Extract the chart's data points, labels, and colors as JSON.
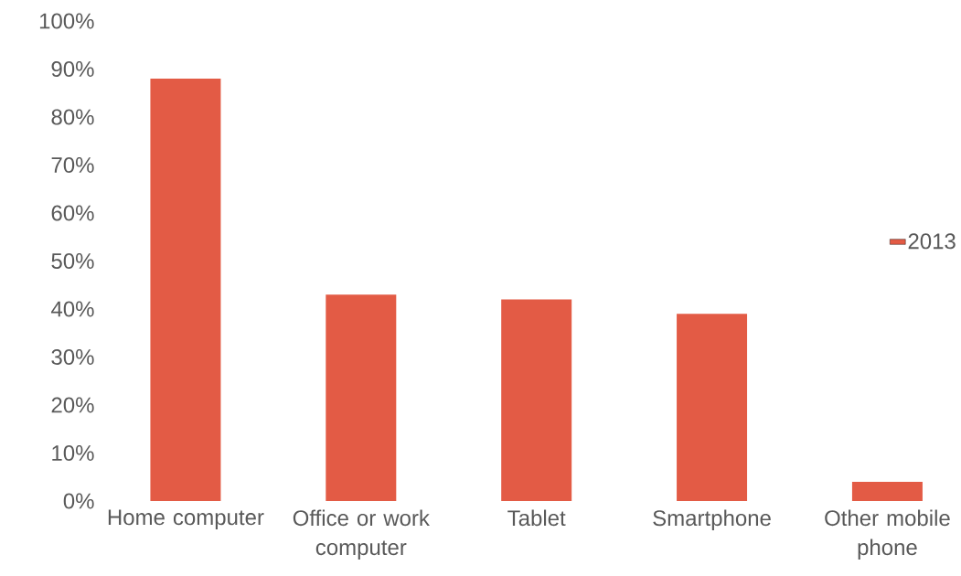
{
  "chart_data": {
    "type": "bar",
    "categories": [
      "Home computer",
      "Office or work computer",
      "Tablet",
      "Smartphone",
      "Other mobile phone"
    ],
    "series": [
      {
        "name": "2013",
        "color": "#e35b45",
        "values": [
          88,
          43,
          42,
          39,
          4
        ]
      }
    ],
    "ylim": [
      0,
      100
    ],
    "yticks": [
      {
        "value": 0,
        "label": "0%"
      },
      {
        "value": 10,
        "label": "10%"
      },
      {
        "value": 20,
        "label": "20%"
      },
      {
        "value": 30,
        "label": "30%"
      },
      {
        "value": 40,
        "label": "40%"
      },
      {
        "value": 50,
        "label": "50%"
      },
      {
        "value": 60,
        "label": "60%"
      },
      {
        "value": 70,
        "label": "70%"
      },
      {
        "value": 80,
        "label": "80%"
      },
      {
        "value": 90,
        "label": "90%"
      },
      {
        "value": 100,
        "label": "100%"
      }
    ],
    "grid": false,
    "legend": "right"
  }
}
